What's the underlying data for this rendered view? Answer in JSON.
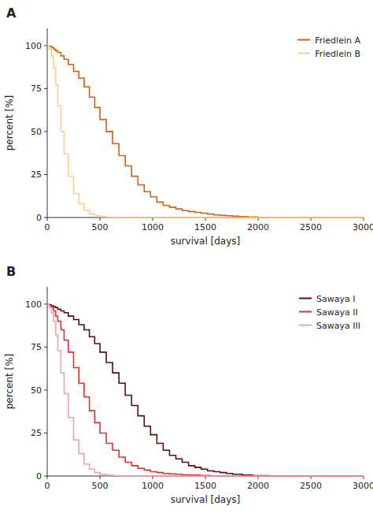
{
  "chart_data": [
    {
      "type": "step",
      "title": "A",
      "xlabel": "survival [days]",
      "ylabel": "percent [%]",
      "xlim": [
        0,
        3000
      ],
      "ylim": [
        0,
        110
      ],
      "xticks": [
        0,
        500,
        1000,
        1500,
        2000,
        2500,
        3000
      ],
      "yticks": [
        0,
        25,
        50,
        75,
        100
      ],
      "grid": false,
      "legend": "upper-right",
      "series": [
        {
          "name": "Friedlein A",
          "color": "#D4600A",
          "x": [
            0,
            20,
            40,
            60,
            80,
            100,
            130,
            160,
            200,
            250,
            300,
            350,
            400,
            450,
            500,
            560,
            620,
            680,
            740,
            800,
            860,
            920,
            980,
            1040,
            1100,
            1160,
            1220,
            1280,
            1340,
            1400,
            1460,
            1520,
            1580,
            1640,
            1700,
            1760,
            1820,
            1900,
            2000,
            2200,
            2500,
            3000
          ],
          "values": [
            100,
            99.5,
            99,
            98,
            97,
            96,
            94,
            92,
            89,
            85,
            81,
            76,
            70,
            64,
            57,
            50,
            43,
            36,
            30,
            24,
            19,
            15,
            12,
            9,
            7,
            6,
            5,
            4,
            3.5,
            3,
            2.5,
            2,
            1.5,
            1.2,
            1,
            0.8,
            0.5,
            0.3,
            0.1,
            0,
            0,
            0
          ]
        },
        {
          "name": "Friedlein B",
          "color": "#FFCC88",
          "x": [
            0,
            20,
            40,
            60,
            80,
            100,
            130,
            160,
            200,
            250,
            300,
            350,
            400,
            450,
            500,
            560,
            620,
            680,
            740,
            800,
            900,
            1000,
            1500,
            2000,
            2500,
            3000
          ],
          "values": [
            100,
            98,
            94,
            87,
            77,
            65,
            50,
            37,
            24,
            14,
            8,
            4,
            2,
            1,
            0.5,
            0.2,
            0.1,
            0,
            0,
            0,
            0,
            0,
            0,
            0,
            0,
            0
          ]
        }
      ]
    },
    {
      "type": "step",
      "title": "B",
      "xlabel": "survival [days]",
      "ylabel": "percent [%]",
      "xlim": [
        0,
        3000
      ],
      "ylim": [
        0,
        110
      ],
      "xticks": [
        0,
        500,
        1000,
        1500,
        2000,
        2500,
        3000
      ],
      "yticks": [
        0,
        25,
        50,
        75,
        100
      ],
      "grid": false,
      "legend": "upper-right",
      "series": [
        {
          "name": "Sawaya I",
          "color": "#5C0A0A",
          "x": [
            0,
            20,
            40,
            60,
            80,
            100,
            130,
            160,
            200,
            250,
            300,
            350,
            400,
            450,
            500,
            560,
            620,
            680,
            740,
            800,
            860,
            920,
            980,
            1040,
            1100,
            1160,
            1220,
            1280,
            1340,
            1400,
            1460,
            1520,
            1580,
            1640,
            1700,
            1760,
            1850,
            1950,
            2100,
            2500,
            3000
          ],
          "values": [
            100,
            99.5,
            99,
            98.5,
            98,
            97,
            96,
            95,
            93,
            91,
            88,
            85,
            81,
            77,
            72,
            66,
            60,
            54,
            47,
            41,
            35,
            29,
            24,
            19,
            15,
            12,
            10,
            8,
            6,
            5,
            4,
            3,
            2.5,
            2,
            1.5,
            1,
            0.5,
            0.2,
            0,
            0,
            0
          ]
        },
        {
          "name": "Sawaya II",
          "color": "#E03030",
          "x": [
            0,
            20,
            40,
            60,
            80,
            100,
            130,
            160,
            200,
            250,
            300,
            350,
            400,
            450,
            500,
            560,
            620,
            680,
            740,
            800,
            860,
            920,
            980,
            1040,
            1100,
            1160,
            1220,
            1280,
            1350,
            1450,
            1550,
            1650,
            1750,
            1900,
            2100,
            2500,
            3000
          ],
          "values": [
            100,
            99,
            98,
            96,
            93,
            90,
            85,
            79,
            72,
            63,
            54,
            46,
            38,
            31,
            25,
            19,
            15,
            11,
            8,
            6,
            4.5,
            3.5,
            2.5,
            2,
            1.5,
            1.2,
            1,
            0.7,
            0.5,
            0.3,
            0.1,
            0,
            0,
            0,
            0,
            0,
            0
          ]
        },
        {
          "name": "Sawaya III",
          "color": "#F0A0B0",
          "x": [
            0,
            20,
            40,
            60,
            80,
            100,
            130,
            160,
            200,
            250,
            300,
            350,
            400,
            450,
            500,
            560,
            620,
            700,
            800,
            900,
            1000,
            1200,
            1500,
            2000,
            2500,
            3000
          ],
          "values": [
            100,
            98,
            95,
            90,
            82,
            73,
            60,
            48,
            34,
            21,
            13,
            7,
            4,
            2,
            1,
            0.5,
            0.2,
            0.1,
            0,
            0,
            0,
            0,
            0,
            0,
            0,
            0
          ]
        }
      ]
    }
  ]
}
